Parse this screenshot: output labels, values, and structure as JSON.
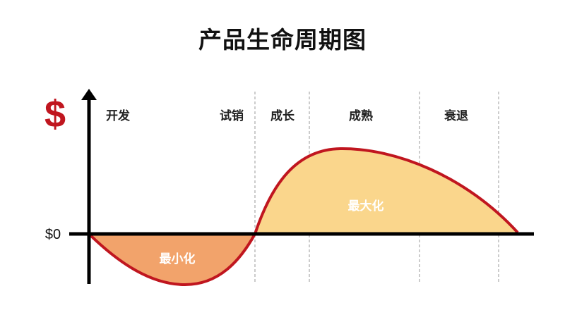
{
  "title": "产品生命周期图",
  "y_axis_symbol": "$",
  "zero_label": "$0",
  "stages": [
    "开发",
    "试销",
    "成长",
    "成熟",
    "衰退"
  ],
  "loss_area_label": "最小化",
  "profit_area_label": "最大化",
  "colors": {
    "curve": "#c0161f",
    "loss_fill": "#f2a36b",
    "profit_fill": "#fad68c",
    "axis": "#000000",
    "dollar": "#c0161f"
  }
}
